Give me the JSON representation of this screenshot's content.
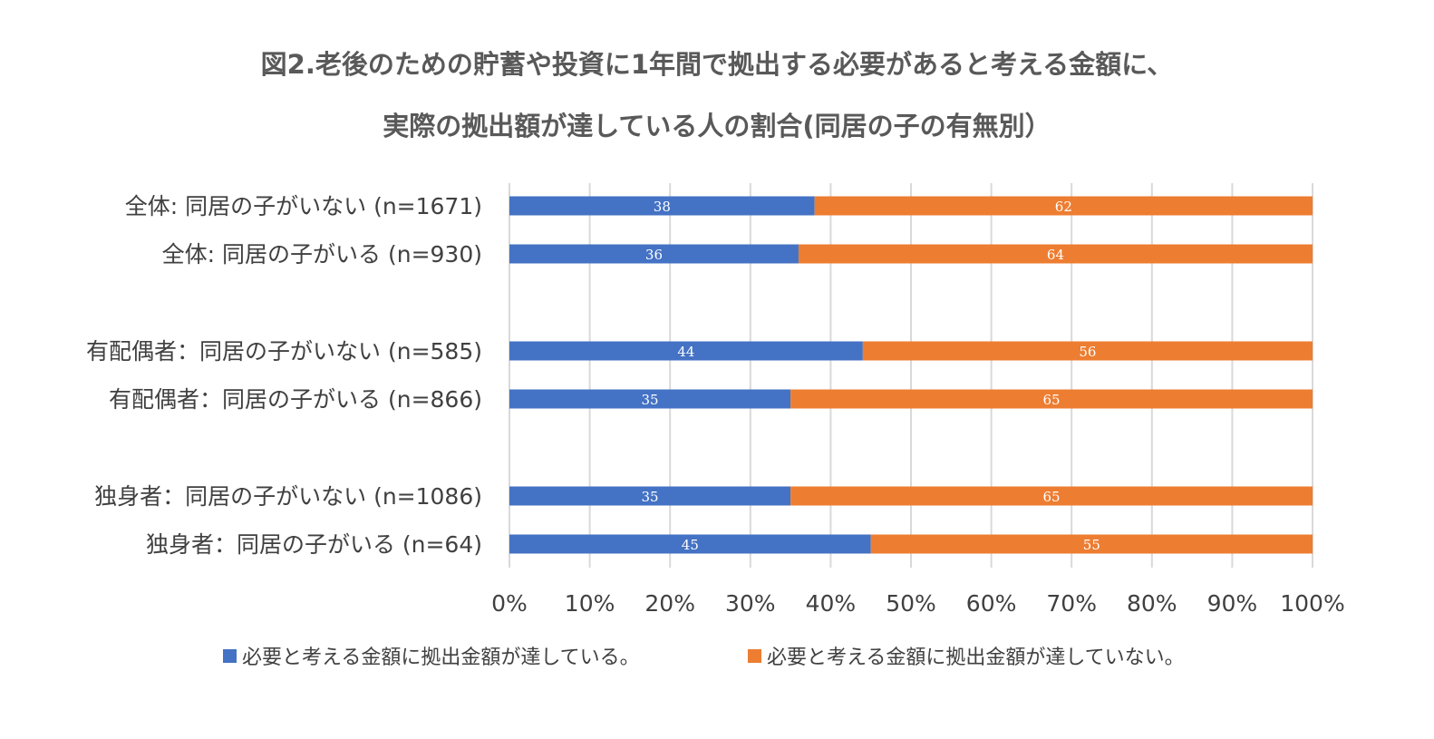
{
  "title_line1": "図2.老後のための貯蓄や投資に1年間で拠出する必要があると考える金額に、",
  "title_line2": "実際の拠出額が達している人の割合(同居の子の有無別）",
  "chart_data": {
    "type": "bar",
    "orientation": "horizontal",
    "stacked": "percent",
    "categories": [
      "全体: 同居の子がいない (n=1671)",
      "全体: 同居の子がいる (n=930)",
      "有配偶者：同居の子がいない (n=585)",
      "有配偶者：同居の子がいる (n=866)",
      "独身者：同居の子がいない (n=1086)",
      "独身者：同居の子がいる (n=64)"
    ],
    "series": [
      {
        "name": "必要と考える金額に拠出金額が達している。",
        "color": "#4472C4",
        "values": [
          38,
          36,
          44,
          35,
          35,
          45
        ]
      },
      {
        "name": "必要と考える金額に拠出金額が達していない。",
        "color": "#ED7D31",
        "values": [
          62,
          64,
          56,
          65,
          65,
          55
        ]
      }
    ],
    "xlim": [
      0,
      100
    ],
    "xticks": [
      "0%",
      "10%",
      "20%",
      "30%",
      "40%",
      "50%",
      "60%",
      "70%",
      "80%",
      "90%",
      "100%"
    ],
    "grid": true,
    "legend": "bottom",
    "data_labels": true
  }
}
